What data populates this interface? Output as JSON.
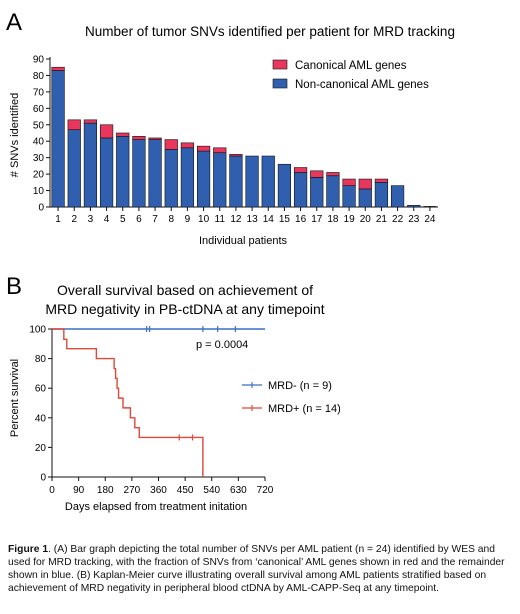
{
  "chart_data": [
    {
      "panel": "A",
      "type": "bar",
      "stacked": true,
      "title": "Number of tumor SNVs identified per patient for MRD tracking",
      "xlabel": "Individual patients",
      "ylabel": "# SNVs identified",
      "ylim": [
        0,
        90
      ],
      "yticks": [
        0,
        10,
        20,
        30,
        40,
        50,
        60,
        70,
        80,
        90
      ],
      "legend_position": "top-right",
      "categories": [
        "1",
        "2",
        "3",
        "4",
        "5",
        "6",
        "7",
        "8",
        "9",
        "10",
        "11",
        "12",
        "13",
        "14",
        "15",
        "16",
        "17",
        "18",
        "19",
        "20",
        "21",
        "22",
        "23",
        "24"
      ],
      "series": [
        {
          "name": "Non-canonical AML genes",
          "color": "#2f5fae",
          "values": [
            83,
            47,
            51,
            42,
            43,
            41,
            41,
            35,
            36,
            34,
            33,
            31,
            31,
            31,
            26,
            21,
            18,
            19,
            13,
            11,
            15,
            13,
            1,
            0
          ]
        },
        {
          "name": "Canonical AML genes",
          "color": "#e8365c",
          "values": [
            2,
            6,
            2,
            8,
            2,
            2,
            1,
            6,
            3,
            3,
            3,
            1,
            0,
            0,
            0,
            3,
            4,
            2,
            4,
            6,
            2,
            0,
            0,
            0
          ]
        }
      ]
    },
    {
      "panel": "B",
      "type": "line",
      "subtype": "kaplan-meier",
      "title_lines": [
        "Overall survival based on achievement of",
        "MRD negativity in PB-ctDNA at any timepoint"
      ],
      "xlabel": "Days elapsed from treatment initation",
      "ylabel": "Percent survival",
      "xlim": [
        0,
        720
      ],
      "ylim": [
        0,
        100
      ],
      "xticks": [
        0,
        90,
        180,
        270,
        360,
        450,
        540,
        630,
        720
      ],
      "yticks": [
        0,
        20,
        40,
        60,
        80,
        100
      ],
      "annotation": "p = 0.0004",
      "legend_position": "right",
      "series": [
        {
          "name": "MRD- (n = 9)",
          "color": "#3a6fc4",
          "steps": [
            [
              0,
              100
            ],
            [
              720,
              100
            ]
          ],
          "censored": [
            [
              320,
              100
            ],
            [
              330,
              100
            ],
            [
              510,
              100
            ],
            [
              560,
              100
            ],
            [
              620,
              100
            ]
          ]
        },
        {
          "name": "MRD+ (n = 14)",
          "color": "#e0483a",
          "steps": [
            [
              0,
              100
            ],
            [
              40,
              100
            ],
            [
              40,
              93
            ],
            [
              50,
              93
            ],
            [
              50,
              86.7
            ],
            [
              150,
              86.7
            ],
            [
              150,
              80
            ],
            [
              210,
              80
            ],
            [
              210,
              73.3
            ],
            [
              215,
              73.3
            ],
            [
              215,
              66.7
            ],
            [
              220,
              66.7
            ],
            [
              220,
              60
            ],
            [
              225,
              60
            ],
            [
              225,
              53.3
            ],
            [
              240,
              53.3
            ],
            [
              240,
              46.7
            ],
            [
              265,
              46.7
            ],
            [
              265,
              40
            ],
            [
              280,
              40
            ],
            [
              280,
              33.3
            ],
            [
              295,
              33.3
            ],
            [
              295,
              26.7
            ],
            [
              510,
              26.7
            ],
            [
              510,
              0
            ]
          ],
          "censored": [
            [
              430,
              26.7
            ],
            [
              475,
              26.7
            ]
          ]
        }
      ]
    }
  ],
  "panel_labels": {
    "a": "A",
    "b": "B"
  },
  "caption": {
    "label": "Figure 1",
    "text": ". (A) Bar graph depicting the total number of SNVs per AML patient (n = 24) identified by WES and used for MRD tracking, with the fraction of SNVs from ‘canonical’ AML genes shown in red and the remainder shown in blue. (B) Kaplan-Meier curve illustrating overall survival among AML patients stratified based on achievement of MRD negativity in peripheral blood ctDNA by AML-CAPP-Seq at any timepoint."
  }
}
